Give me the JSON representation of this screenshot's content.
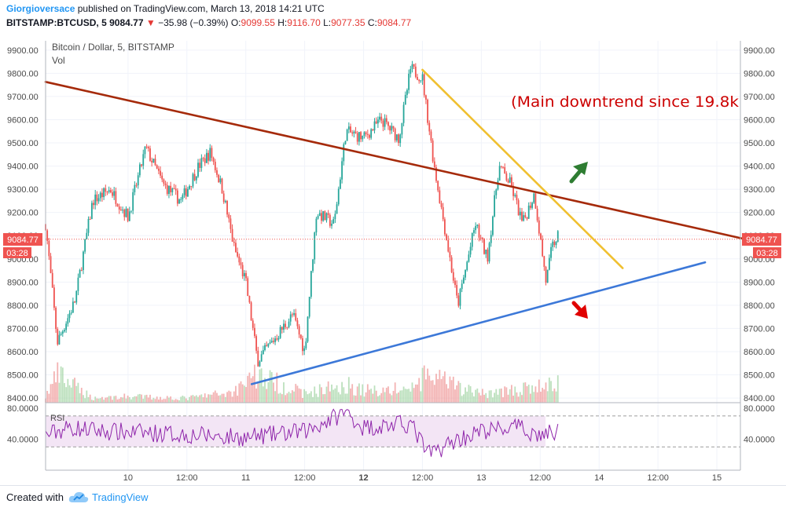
{
  "header": {
    "author": "Giorgioversace",
    "published_on": "published on TradingView.com, March 13, 2018 14:21 UTC",
    "symbol": "BITSTAMP:BTCUSD, 5",
    "last": "9084.77",
    "change": "−35.98 (−0.39%)",
    "o_label": "O:",
    "o_value": "9099.55",
    "h_label": "H:",
    "h_value": "9116.70",
    "l_label": "L:",
    "l_value": "9077.35",
    "c_label": "C:",
    "c_value": "9084.77"
  },
  "legend": {
    "series_title": "Bitcoin / Dollar, 5, BITSTAMP",
    "vol_label": "Vol",
    "rsi_label": "RSI"
  },
  "annotation": {
    "text": "(Main downtrend since 19.8k"
  },
  "price_badge": {
    "value": "9084.77",
    "countdown": "03:28"
  },
  "footer": {
    "created_with": "Created with",
    "brand": "TradingView"
  },
  "colors": {
    "up": "#26a69a",
    "down": "#ef5350",
    "main_trendline": "#a52a0a",
    "short_trendline": "#f0c030",
    "support_line": "#3c78d8",
    "up_arrow": "#2e7d32",
    "down_arrow": "#e00000",
    "rsi_line": "#8e24aa",
    "rsi_band": "#f3e5f5",
    "annotation": "#cc0000"
  },
  "chart_data": {
    "type": "candlestick",
    "title": "Bitcoin / Dollar, 5, BITSTAMP",
    "x_tick_labels": [
      "10",
      "12:00",
      "11",
      "12:00",
      "12",
      "12:00",
      "13",
      "12:00",
      "14",
      "12:00",
      "15"
    ],
    "y_ticks": [
      "9900.00",
      "9800.00",
      "9700.00",
      "9600.00",
      "9500.00",
      "9400.00",
      "9300.00",
      "9200.00",
      "9100.00",
      "9000.00",
      "8900.00",
      "8800.00",
      "8700.00",
      "8600.00",
      "8500.00",
      "8400.00"
    ],
    "ylim": [
      8380,
      9940
    ],
    "xlim_days": [
      9.3,
      15.2
    ],
    "price_path": [
      {
        "t": 9.3,
        "p": 9150
      },
      {
        "t": 9.4,
        "p": 8640
      },
      {
        "t": 9.55,
        "p": 8820
      },
      {
        "t": 9.7,
        "p": 9250
      },
      {
        "t": 9.85,
        "p": 9300
      },
      {
        "t": 10.0,
        "p": 9180
      },
      {
        "t": 10.15,
        "p": 9480
      },
      {
        "t": 10.3,
        "p": 9320
      },
      {
        "t": 10.45,
        "p": 9250
      },
      {
        "t": 10.6,
        "p": 9400
      },
      {
        "t": 10.7,
        "p": 9460
      },
      {
        "t": 10.8,
        "p": 9300
      },
      {
        "t": 10.9,
        "p": 9050
      },
      {
        "t": 11.0,
        "p": 8900
      },
      {
        "t": 11.1,
        "p": 8560
      },
      {
        "t": 11.25,
        "p": 8660
      },
      {
        "t": 11.4,
        "p": 8760
      },
      {
        "t": 11.5,
        "p": 8600
      },
      {
        "t": 11.6,
        "p": 9200
      },
      {
        "t": 11.75,
        "p": 9150
      },
      {
        "t": 11.85,
        "p": 9550
      },
      {
        "t": 12.0,
        "p": 9520
      },
      {
        "t": 12.15,
        "p": 9600
      },
      {
        "t": 12.3,
        "p": 9520
      },
      {
        "t": 12.4,
        "p": 9820
      },
      {
        "t": 12.5,
        "p": 9780
      },
      {
        "t": 12.6,
        "p": 9400
      },
      {
        "t": 12.7,
        "p": 9100
      },
      {
        "t": 12.8,
        "p": 8800
      },
      {
        "t": 12.95,
        "p": 9150
      },
      {
        "t": 13.05,
        "p": 9000
      },
      {
        "t": 13.15,
        "p": 9400
      },
      {
        "t": 13.25,
        "p": 9320
      },
      {
        "t": 13.35,
        "p": 9150
      },
      {
        "t": 13.45,
        "p": 9280
      },
      {
        "t": 13.55,
        "p": 8900
      },
      {
        "t": 13.6,
        "p": 9050
      },
      {
        "t": 13.65,
        "p": 9100
      }
    ],
    "volume_ylim": [
      0,
      1
    ],
    "volume_profile": [
      {
        "t": 9.3,
        "v": 0.2
      },
      {
        "t": 9.4,
        "v": 0.9
      },
      {
        "t": 9.7,
        "v": 0.15
      },
      {
        "t": 10.0,
        "v": 0.2
      },
      {
        "t": 10.5,
        "v": 0.15
      },
      {
        "t": 10.9,
        "v": 0.35
      },
      {
        "t": 11.05,
        "v": 0.95
      },
      {
        "t": 11.5,
        "v": 0.3
      },
      {
        "t": 11.85,
        "v": 0.6
      },
      {
        "t": 12.0,
        "v": 0.4
      },
      {
        "t": 12.4,
        "v": 0.45
      },
      {
        "t": 12.55,
        "v": 0.9
      },
      {
        "t": 12.8,
        "v": 0.5
      },
      {
        "t": 13.0,
        "v": 0.3
      },
      {
        "t": 13.4,
        "v": 0.45
      },
      {
        "t": 13.6,
        "v": 0.6
      }
    ],
    "rsi_ticks": [
      "80.0000",
      "40.0000"
    ],
    "rsi_band": [
      30,
      70
    ],
    "rsi_ylim": [
      0,
      85
    ],
    "rsi_profile": [
      {
        "t": 9.3,
        "r": 45
      },
      {
        "t": 9.5,
        "r": 55
      },
      {
        "t": 9.8,
        "r": 50
      },
      {
        "t": 10.2,
        "r": 48
      },
      {
        "t": 10.6,
        "r": 45
      },
      {
        "t": 11.0,
        "r": 42
      },
      {
        "t": 11.5,
        "r": 50
      },
      {
        "t": 11.85,
        "r": 75
      },
      {
        "t": 12.0,
        "r": 55
      },
      {
        "t": 12.4,
        "r": 60
      },
      {
        "t": 12.55,
        "r": 20
      },
      {
        "t": 12.8,
        "r": 40
      },
      {
        "t": 13.0,
        "r": 50
      },
      {
        "t": 13.3,
        "r": 55
      },
      {
        "t": 13.5,
        "r": 45
      },
      {
        "t": 13.65,
        "r": 50
      }
    ],
    "trendlines": [
      {
        "name": "main-downtrend",
        "from": {
          "t": 9.3,
          "p": 9763
        },
        "to": {
          "t": 15.25,
          "p": 9084
        }
      },
      {
        "name": "short-downtrend",
        "from": {
          "t": 12.5,
          "p": 9815
        },
        "to": {
          "t": 14.2,
          "p": 8960
        }
      },
      {
        "name": "support",
        "from": {
          "t": 11.05,
          "p": 8460
        },
        "to": {
          "t": 14.9,
          "p": 8985
        }
      }
    ],
    "last_price": 9084.77
  }
}
